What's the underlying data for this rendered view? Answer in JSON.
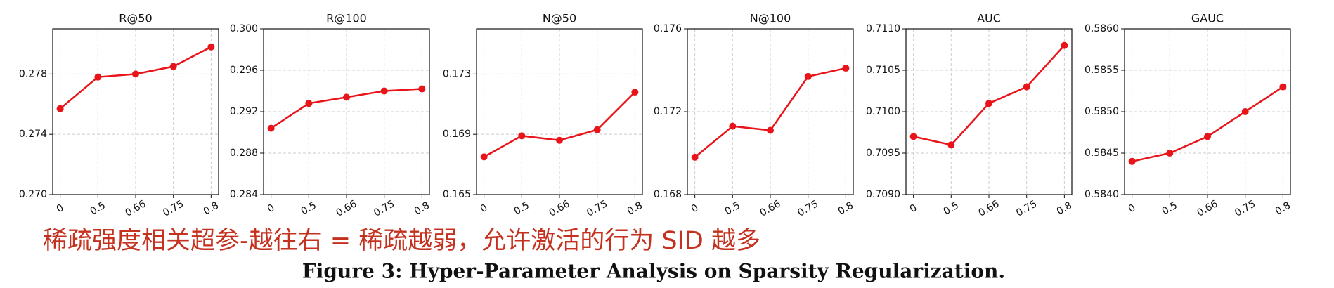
{
  "chart_data": [
    {
      "type": "line",
      "title": "R@50",
      "categories": [
        "0",
        "0.5",
        "0.66",
        "0.75",
        "0.8"
      ],
      "series": [
        {
          "color": "#e8141a",
          "values": [
            0.2757,
            0.2778,
            0.278,
            0.2785,
            0.2798
          ]
        }
      ],
      "ylim": [
        0.27,
        0.281
      ],
      "yticks": [
        {
          "value": 0.27,
          "label": "0.270"
        },
        0.274,
        0.278
      ],
      "grid": true
    },
    {
      "type": "line",
      "title": "R@100",
      "categories": [
        "0",
        "0.5",
        "0.66",
        "0.75",
        "0.8"
      ],
      "series": [
        {
          "color": "#e8141a",
          "values": [
            0.2904,
            0.2928,
            0.2934,
            0.294,
            0.2942
          ]
        }
      ],
      "ylim": [
        0.284,
        0.3
      ],
      "yticks": [
        0.284,
        0.288,
        0.292,
        0.296,
        {
          "value": 0.3,
          "label": "0.300"
        }
      ],
      "grid": true
    },
    {
      "type": "line",
      "title": "N@50",
      "categories": [
        "0",
        "0.5",
        "0.66",
        "0.75",
        "0.8"
      ],
      "series": [
        {
          "color": "#e8141a",
          "values": [
            0.1675,
            0.1689,
            0.1686,
            0.1693,
            0.1718
          ]
        }
      ],
      "ylim": [
        0.165,
        0.176
      ],
      "yticks": [
        0.165,
        0.169,
        0.173
      ],
      "grid": true
    },
    {
      "type": "line",
      "title": "N@100",
      "categories": [
        "0",
        "0.5",
        "0.66",
        "0.75",
        "0.8"
      ],
      "series": [
        {
          "color": "#e8141a",
          "values": [
            0.1698,
            0.1713,
            0.1711,
            0.1737,
            0.1741
          ]
        }
      ],
      "ylim": [
        0.168,
        0.176
      ],
      "yticks": [
        0.168,
        0.172,
        0.176
      ],
      "grid": true
    },
    {
      "type": "line",
      "title": "AUC",
      "categories": [
        "0",
        "0.5",
        "0.66",
        "0.75",
        "0.8"
      ],
      "series": [
        {
          "color": "#e8141a",
          "values": [
            0.7097,
            0.7096,
            0.7101,
            0.7103,
            0.7108
          ]
        }
      ],
      "ylim": [
        0.709,
        0.711
      ],
      "yticks": [
        {
          "value": 0.709,
          "label": "0.7090"
        },
        0.7095,
        {
          "value": 0.71,
          "label": "0.7100"
        },
        0.7105,
        {
          "value": 0.711,
          "label": "0.7110"
        }
      ],
      "grid": true
    },
    {
      "type": "line",
      "title": "GAUC",
      "categories": [
        "0",
        "0.5",
        "0.66",
        "0.75",
        "0.8"
      ],
      "series": [
        {
          "color": "#e8141a",
          "values": [
            0.5844,
            0.5845,
            0.5847,
            0.585,
            0.5853
          ]
        }
      ],
      "ylim": [
        0.584,
        0.586
      ],
      "yticks": [
        {
          "value": 0.584,
          "label": "0.5840"
        },
        0.5845,
        {
          "value": 0.585,
          "label": "0.5850"
        },
        0.5855,
        {
          "value": 0.586,
          "label": "0.5860"
        }
      ],
      "grid": true
    }
  ],
  "annotation": "稀疏强度相关超参-越往右 = 稀疏越弱，允许激活的行为 SID 越多",
  "caption": "Figure 3: Hyper-Parameter Analysis on Sparsity Regularization."
}
